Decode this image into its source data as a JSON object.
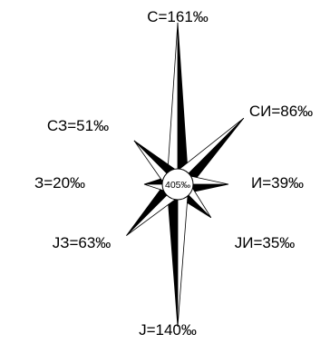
{
  "chart_data": {
    "type": "wind-rose",
    "center_label": "405‰",
    "directions": [
      {
        "label": "С=161‰",
        "value": 161
      },
      {
        "label": "СИ=86‰",
        "value": 86
      },
      {
        "label": "И=39‰",
        "value": 39
      },
      {
        "label": "JИ=35‰",
        "value": 35
      },
      {
        "label": "J=140‰",
        "value": 140
      },
      {
        "label": "JЗ=63‰",
        "value": 63
      },
      {
        "label": "З=20‰",
        "value": 20
      },
      {
        "label": "СЗ=51‰",
        "value": 51
      }
    ],
    "colors": {
      "fill": "#000000",
      "background": "#ffffff",
      "stroke": "#000000"
    }
  }
}
